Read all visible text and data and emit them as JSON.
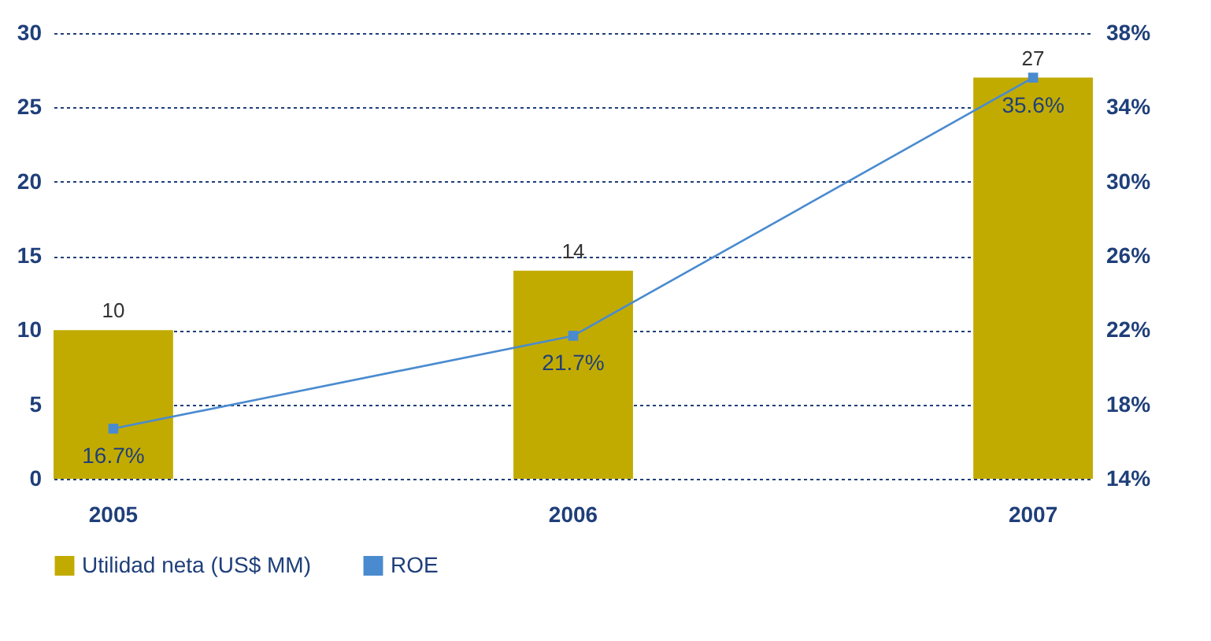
{
  "chart_data": {
    "type": "bar",
    "categories": [
      "2005",
      "2006",
      "2007"
    ],
    "series": [
      {
        "name": "Utilidad neta (US$ MM)",
        "color": "#c2ab00",
        "values": [
          10,
          14,
          27
        ],
        "value_labels": [
          "10",
          "14",
          "27"
        ]
      },
      {
        "name": "ROE",
        "type": "line",
        "axis": "y2",
        "color": "#4a8bcf",
        "values": [
          16.7,
          21.7,
          35.6
        ],
        "value_labels": [
          "16.7%",
          "21.7%",
          "35.6%"
        ]
      }
    ],
    "ylim": [
      0,
      30
    ],
    "yticks": [
      0,
      5,
      10,
      15,
      20,
      25,
      30
    ],
    "y2lim": [
      14,
      38
    ],
    "y2ticks": [
      {
        "value": 14,
        "label": "14%"
      },
      {
        "value": 18,
        "label": "18%"
      },
      {
        "value": 22,
        "label": "22%"
      },
      {
        "value": 26,
        "label": "26%"
      },
      {
        "value": 30,
        "label": "30%"
      },
      {
        "value": 34,
        "label": "34%"
      },
      {
        "value": 38,
        "label": "38%"
      }
    ],
    "grid": "y",
    "legend": "bottom left",
    "marker": "square",
    "line_style": "solid"
  }
}
